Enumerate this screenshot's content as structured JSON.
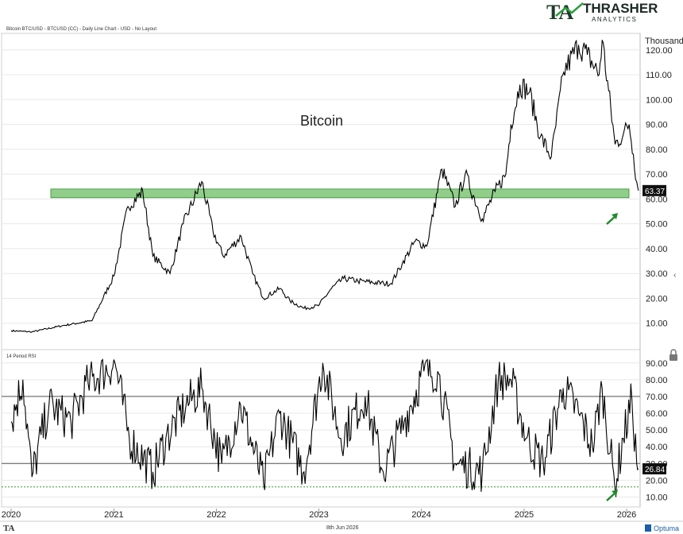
{
  "header": {
    "chart_info": "Bitcoin BTC/USD - BTCUSD (CC) - Daily Line Chart - USD - No Layout",
    "brand_mark": "TA",
    "brand_name": "THRASHER",
    "brand_sub": "ANALYTICS"
  },
  "footer": {
    "date": "8th Jun 2026",
    "logo_mark": "TA",
    "optuma_label": "Optuma"
  },
  "colors": {
    "line": "#000000",
    "support_fill": "#7cc576",
    "support_stroke": "#2e8b2e",
    "arrow": "#1f8a2a",
    "dotted": "#2e9e2e",
    "grid": "#e8e8e8"
  },
  "chart_data": [
    {
      "type": "line",
      "title": "Bitcoin",
      "ylabel": "Thousand",
      "ylim": [
        0,
        126
      ],
      "yticks": [
        10,
        20,
        30,
        40,
        50,
        60,
        70,
        80,
        90,
        100,
        110,
        120
      ],
      "ytick_labels": [
        "10.00",
        "20.00",
        "30.00",
        "40.00",
        "50.00",
        "60.00",
        "70.00",
        "80.00",
        "90.00",
        "100.00",
        "110.00",
        "120.00"
      ],
      "last_value_label": "63.37",
      "support_zone": [
        60.5,
        64
      ],
      "x_dates": [
        "2020-01-01",
        "2020-03-15",
        "2020-07-01",
        "2020-10-15",
        "2021-01-01",
        "2021-02-20",
        "2021-04-14",
        "2021-05-20",
        "2021-07-20",
        "2021-09-05",
        "2021-11-10",
        "2021-12-20",
        "2022-01-25",
        "2022-03-30",
        "2022-05-10",
        "2022-06-18",
        "2022-08-15",
        "2022-09-20",
        "2022-11-09",
        "2022-12-30",
        "2023-02-15",
        "2023-03-30",
        "2023-05-20",
        "2023-08-20",
        "2023-09-15",
        "2023-10-25",
        "2023-12-10",
        "2024-01-20",
        "2024-03-14",
        "2024-05-01",
        "2024-06-05",
        "2024-08-05",
        "2024-09-20",
        "2024-10-28",
        "2024-11-15",
        "2024-12-17",
        "2025-01-20",
        "2025-02-28",
        "2025-04-08",
        "2025-05-22",
        "2025-07-14",
        "2025-08-14",
        "2025-09-25",
        "2025-10-06",
        "2025-11-21",
        "2025-12-20",
        "2026-01-10",
        "2026-01-25",
        "2026-02-06",
        "2026-02-12"
      ],
      "values": [
        7,
        6.5,
        9,
        11,
        29,
        57,
        63,
        37,
        30,
        50,
        67,
        47,
        37,
        45,
        30,
        20,
        24,
        19,
        16,
        17,
        24,
        28,
        27,
        26,
        26,
        34,
        43,
        41,
        72,
        57,
        70,
        52,
        63,
        70,
        90,
        106,
        103,
        85,
        77,
        111,
        122,
        118,
        110,
        124,
        82,
        86,
        90,
        78,
        67,
        63.37
      ]
    },
    {
      "type": "line",
      "title": "14 Period RSI",
      "ylim": [
        5,
        97
      ],
      "yticks": [
        10,
        20,
        30,
        40,
        50,
        60,
        70,
        80,
        90
      ],
      "ytick_labels": [
        "10.00",
        "20.00",
        "30.00",
        "40.00",
        "50.00",
        "60.00",
        "70.00",
        "80.00",
        "90.00"
      ],
      "hlines": [
        70,
        30
      ],
      "dotted_line": 16,
      "last_value_label": "26.84",
      "x_dates": [
        "2020-01-01",
        "2020-02-12",
        "2020-03-15",
        "2020-05-15",
        "2020-08-01",
        "2020-10-01",
        "2021-01-05",
        "2021-02-25",
        "2021-05-20",
        "2021-07-05",
        "2021-09-15",
        "2021-11-10",
        "2022-01-20",
        "2022-03-28",
        "2022-06-18",
        "2022-08-14",
        "2022-11-09",
        "2023-01-15",
        "2023-03-20",
        "2023-06-15",
        "2023-08-18",
        "2023-11-01",
        "2024-01-10",
        "2024-02-28",
        "2024-05-01",
        "2024-08-05",
        "2024-10-01",
        "2024-11-15",
        "2025-01-10",
        "2025-03-10",
        "2025-05-20",
        "2025-07-14",
        "2025-09-01",
        "2025-10-06",
        "2025-11-20",
        "2025-12-20",
        "2026-01-20",
        "2026-02-06",
        "2026-02-12"
      ],
      "values": [
        55,
        80,
        22,
        65,
        55,
        78,
        90,
        45,
        25,
        45,
        65,
        75,
        30,
        65,
        18,
        60,
        25,
        90,
        45,
        70,
        25,
        55,
        85,
        85,
        30,
        25,
        80,
        80,
        45,
        30,
        75,
        60,
        40,
        75,
        16,
        45,
        68,
        30,
        26.84
      ]
    }
  ],
  "xaxis": {
    "years": [
      "2020",
      "2021",
      "2022",
      "2023",
      "2024",
      "2025",
      "2026"
    ]
  }
}
